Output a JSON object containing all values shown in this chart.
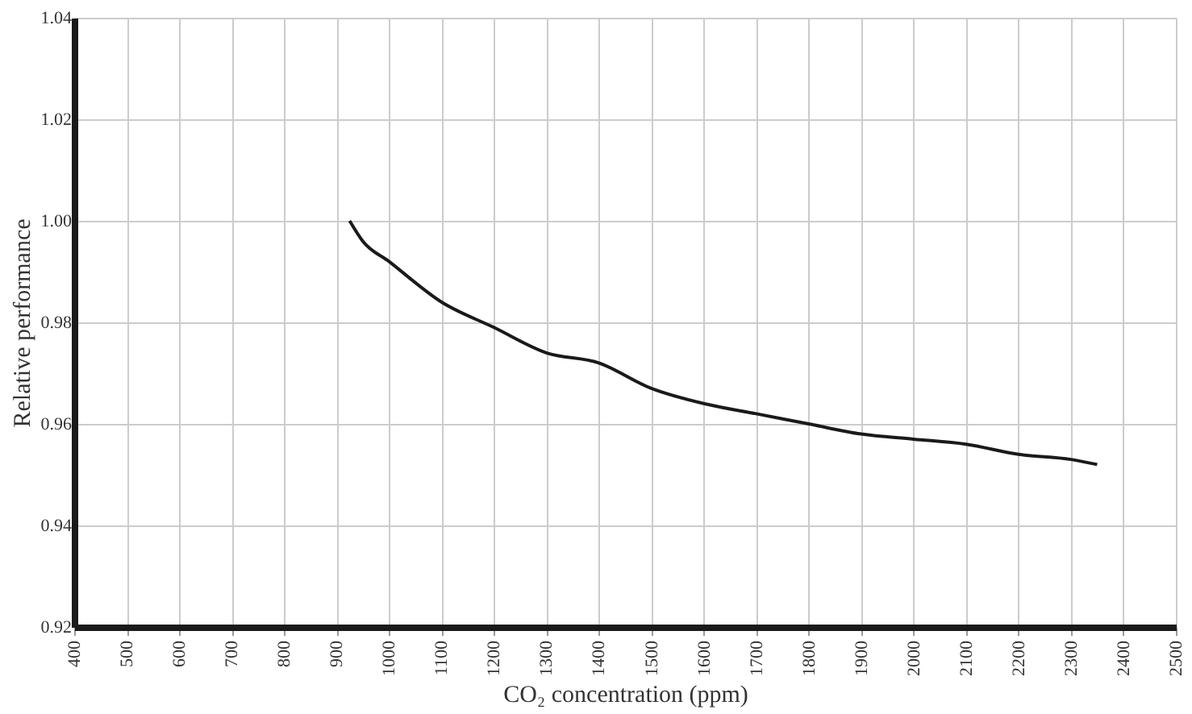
{
  "chart_data": {
    "type": "line",
    "xlabel": "CO₂ concentration (ppm)",
    "ylabel": "Relative performance",
    "x": [
      925,
      950,
      1000,
      1100,
      1200,
      1300,
      1400,
      1500,
      1600,
      1700,
      1800,
      1900,
      2000,
      2100,
      2200,
      2300,
      2350
    ],
    "series": [
      {
        "color": "#1a1a1a",
        "values": [
          1.0,
          0.996,
          0.992,
          0.984,
          0.979,
          0.974,
          0.972,
          0.967,
          0.964,
          0.962,
          0.96,
          0.958,
          0.957,
          0.956,
          0.954,
          0.953,
          0.952
        ]
      }
    ],
    "xlim": [
      400,
      2500
    ],
    "xticks": [
      400,
      500,
      600,
      700,
      800,
      900,
      1000,
      1100,
      1200,
      1300,
      1400,
      1500,
      1600,
      1700,
      1800,
      1900,
      2000,
      2100,
      2200,
      2300,
      2400,
      2500
    ],
    "ylim": [
      0.92,
      1.04
    ],
    "yticks": [
      {
        "value": 0.92,
        "label": "0.92"
      },
      {
        "value": 0.94,
        "label": "0.94"
      },
      {
        "value": 0.96,
        "label": "0.96"
      },
      {
        "value": 0.98,
        "label": "0.98"
      },
      {
        "value": 1.0,
        "label": "1.00"
      },
      {
        "value": 1.02,
        "label": "1.02"
      },
      {
        "value": 1.04,
        "label": "1.04"
      }
    ],
    "grid": true,
    "marker": "none",
    "line_style": "solid"
  }
}
